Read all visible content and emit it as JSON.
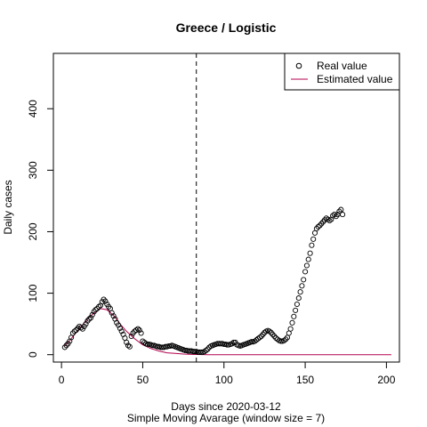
{
  "chart_data": {
    "type": "scatter",
    "title": "Greece / Logistic",
    "xlabel": "Days since 2020-03-12",
    "subtitle": "Simple Moving Avarage (window size = 7)",
    "ylabel": "Daily cases",
    "xlim": [
      -5,
      208
    ],
    "ylim": [
      -12,
      490
    ],
    "xticks": [
      0,
      50,
      100,
      150,
      200
    ],
    "xtick_labels": [
      "0",
      "50",
      "100",
      "150",
      "200"
    ],
    "yticks": [
      0,
      100,
      200,
      300,
      400
    ],
    "ytick_labels": [
      "0",
      "100",
      "200",
      "300",
      "400"
    ],
    "vline_x": 83,
    "legend_position": "top-right",
    "series": [
      {
        "name": "Real value",
        "style": "open-circles",
        "color": "#000000",
        "points": [
          [
            2,
            12
          ],
          [
            3,
            15
          ],
          [
            4,
            18
          ],
          [
            5,
            22
          ],
          [
            6,
            28
          ],
          [
            7,
            35
          ],
          [
            8,
            38
          ],
          [
            9,
            40
          ],
          [
            10,
            43
          ],
          [
            11,
            46
          ],
          [
            12,
            44
          ],
          [
            13,
            42
          ],
          [
            14,
            46
          ],
          [
            15,
            50
          ],
          [
            16,
            55
          ],
          [
            17,
            58
          ],
          [
            18,
            60
          ],
          [
            19,
            65
          ],
          [
            20,
            70
          ],
          [
            21,
            73
          ],
          [
            22,
            75
          ],
          [
            23,
            78
          ],
          [
            24,
            80
          ],
          [
            25,
            86
          ],
          [
            26,
            90
          ],
          [
            27,
            87
          ],
          [
            28,
            82
          ],
          [
            29,
            78
          ],
          [
            30,
            75
          ],
          [
            31,
            68
          ],
          [
            32,
            63
          ],
          [
            33,
            58
          ],
          [
            34,
            52
          ],
          [
            35,
            48
          ],
          [
            36,
            43
          ],
          [
            37,
            38
          ],
          [
            38,
            33
          ],
          [
            39,
            27
          ],
          [
            40,
            20
          ],
          [
            41,
            15
          ],
          [
            42,
            13
          ],
          [
            43,
            30
          ],
          [
            44,
            35
          ],
          [
            45,
            38
          ],
          [
            46,
            40
          ],
          [
            47,
            42
          ],
          [
            48,
            40
          ],
          [
            49,
            35
          ],
          [
            50,
            22
          ],
          [
            51,
            20
          ],
          [
            52,
            18
          ],
          [
            53,
            17
          ],
          [
            54,
            17
          ],
          [
            55,
            16
          ],
          [
            56,
            15
          ],
          [
            57,
            15
          ],
          [
            58,
            14
          ],
          [
            59,
            13
          ],
          [
            60,
            13
          ],
          [
            61,
            12
          ],
          [
            62,
            12
          ],
          [
            63,
            12
          ],
          [
            64,
            13
          ],
          [
            65,
            13
          ],
          [
            66,
            14
          ],
          [
            67,
            14
          ],
          [
            68,
            15
          ],
          [
            69,
            14
          ],
          [
            70,
            13
          ],
          [
            71,
            12
          ],
          [
            72,
            11
          ],
          [
            73,
            10
          ],
          [
            74,
            9
          ],
          [
            75,
            8
          ],
          [
            76,
            7
          ],
          [
            77,
            7
          ],
          [
            78,
            6
          ],
          [
            79,
            6
          ],
          [
            80,
            6
          ],
          [
            81,
            5
          ],
          [
            82,
            5
          ],
          [
            83,
            5
          ],
          [
            84,
            4
          ],
          [
            85,
            4
          ],
          [
            86,
            4
          ],
          [
            87,
            4
          ],
          [
            88,
            5
          ],
          [
            89,
            7
          ],
          [
            90,
            9
          ],
          [
            91,
            12
          ],
          [
            92,
            14
          ],
          [
            93,
            15
          ],
          [
            94,
            16
          ],
          [
            95,
            17
          ],
          [
            96,
            18
          ],
          [
            97,
            18
          ],
          [
            98,
            18
          ],
          [
            99,
            18
          ],
          [
            100,
            17
          ],
          [
            101,
            17
          ],
          [
            102,
            16
          ],
          [
            103,
            16
          ],
          [
            104,
            17
          ],
          [
            105,
            18
          ],
          [
            106,
            20
          ],
          [
            107,
            20
          ],
          [
            108,
            16
          ],
          [
            109,
            15
          ],
          [
            110,
            14
          ],
          [
            111,
            15
          ],
          [
            112,
            16
          ],
          [
            113,
            17
          ],
          [
            114,
            18
          ],
          [
            115,
            19
          ],
          [
            116,
            20
          ],
          [
            117,
            21
          ],
          [
            118,
            21
          ],
          [
            119,
            22
          ],
          [
            120,
            24
          ],
          [
            121,
            26
          ],
          [
            122,
            28
          ],
          [
            123,
            30
          ],
          [
            124,
            33
          ],
          [
            125,
            36
          ],
          [
            126,
            38
          ],
          [
            127,
            39
          ],
          [
            128,
            38
          ],
          [
            129,
            36
          ],
          [
            130,
            33
          ],
          [
            131,
            30
          ],
          [
            132,
            27
          ],
          [
            133,
            25
          ],
          [
            134,
            23
          ],
          [
            135,
            22
          ],
          [
            136,
            22
          ],
          [
            137,
            23
          ],
          [
            138,
            25
          ],
          [
            139,
            28
          ],
          [
            140,
            35
          ],
          [
            141,
            42
          ],
          [
            142,
            52
          ],
          [
            143,
            62
          ],
          [
            144,
            72
          ],
          [
            145,
            82
          ],
          [
            146,
            92
          ],
          [
            147,
            102
          ],
          [
            148,
            112
          ],
          [
            149,
            122
          ],
          [
            150,
            135
          ],
          [
            151,
            145
          ],
          [
            152,
            155
          ],
          [
            153,
            165
          ],
          [
            154,
            178
          ],
          [
            155,
            188
          ],
          [
            156,
            198
          ],
          [
            157,
            205
          ],
          [
            158,
            208
          ],
          [
            159,
            210
          ],
          [
            160,
            213
          ],
          [
            161,
            216
          ],
          [
            162,
            219
          ],
          [
            163,
            222
          ],
          [
            164,
            220
          ],
          [
            165,
            218
          ],
          [
            166,
            220
          ],
          [
            167,
            226
          ],
          [
            168,
            228
          ],
          [
            169,
            225
          ],
          [
            170,
            228
          ],
          [
            171,
            233
          ],
          [
            172,
            236
          ],
          [
            173,
            228
          ]
        ]
      },
      {
        "name": "Estimated value",
        "style": "line",
        "color": "#b4004e",
        "points": [
          [
            2,
            14
          ],
          [
            5,
            23
          ],
          [
            10,
            39
          ],
          [
            15,
            55
          ],
          [
            20,
            68
          ],
          [
            24,
            75
          ],
          [
            28,
            73
          ],
          [
            32,
            64
          ],
          [
            36,
            50
          ],
          [
            40,
            38
          ],
          [
            45,
            26
          ],
          [
            50,
            16
          ],
          [
            55,
            10
          ],
          [
            60,
            6
          ],
          [
            65,
            3
          ],
          [
            70,
            2
          ],
          [
            75,
            1
          ],
          [
            80,
            0.5
          ],
          [
            90,
            0
          ],
          [
            100,
            0
          ],
          [
            150,
            0
          ],
          [
            203,
            0
          ]
        ]
      }
    ]
  }
}
